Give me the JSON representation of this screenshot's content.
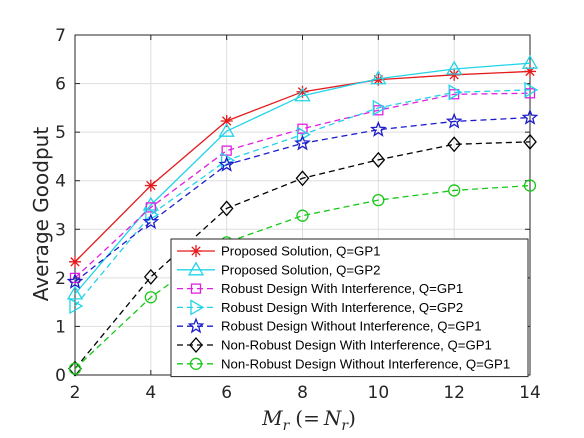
{
  "chart_data": {
    "type": "line",
    "ylabel": "Average Goodput",
    "xlabel": {
      "m": "M",
      "m_sub": "r",
      "eq": "(=",
      "n": "N",
      "n_sub": "r",
      "close": ")"
    },
    "xlim": [
      2,
      14
    ],
    "ylim": [
      0,
      7
    ],
    "xticks": [
      "2",
      "4",
      "6",
      "8",
      "10",
      "12",
      "14"
    ],
    "yticks": [
      "0",
      "1",
      "2",
      "3",
      "4",
      "5",
      "6",
      "7"
    ],
    "grid": true,
    "legend_position": "bottom-right",
    "x": [
      2,
      4,
      6,
      8,
      10,
      12,
      14
    ],
    "series": [
      {
        "name": "Proposed Solution, Q=GP1",
        "color": "#e41a1c",
        "dash": "solid",
        "marker": "asterisk",
        "values": [
          2.33,
          3.9,
          5.23,
          5.83,
          6.08,
          6.18,
          6.25
        ]
      },
      {
        "name": "Proposed Solution, Q=GP2",
        "color": "#22d3e8",
        "dash": "solid",
        "marker": "triangle-up",
        "values": [
          1.67,
          3.5,
          5.02,
          5.75,
          6.1,
          6.3,
          6.42
        ]
      },
      {
        "name": "Robust Design With Interference, Q=GP1",
        "color": "#e020e0",
        "dash": "dashed",
        "marker": "square",
        "values": [
          2.0,
          3.45,
          4.62,
          5.07,
          5.45,
          5.78,
          5.8
        ]
      },
      {
        "name": "Robust Design With Interference, Q=GP2",
        "color": "#22d3e8",
        "dash": "dashed",
        "marker": "triangle-right",
        "values": [
          1.42,
          3.3,
          4.42,
          4.95,
          5.5,
          5.82,
          5.87
        ]
      },
      {
        "name": "Robust Design Without Interference, Q=GP1",
        "color": "#1c1ccc",
        "dash": "dashed",
        "marker": "star",
        "values": [
          1.92,
          3.15,
          4.33,
          4.77,
          5.05,
          5.22,
          5.3
        ]
      },
      {
        "name": "Non-Robust Design With Interference, Q=GP1",
        "color": "#000000",
        "dash": "dashed",
        "marker": "diamond",
        "values": [
          0.13,
          2.02,
          3.43,
          4.05,
          4.43,
          4.75,
          4.8
        ]
      },
      {
        "name": "Non-Robust Design Without Interference, Q=GP1",
        "color": "#18c818",
        "dash": "dashed",
        "marker": "circle",
        "values": [
          0.13,
          1.6,
          2.73,
          3.28,
          3.6,
          3.8,
          3.9
        ]
      }
    ]
  }
}
